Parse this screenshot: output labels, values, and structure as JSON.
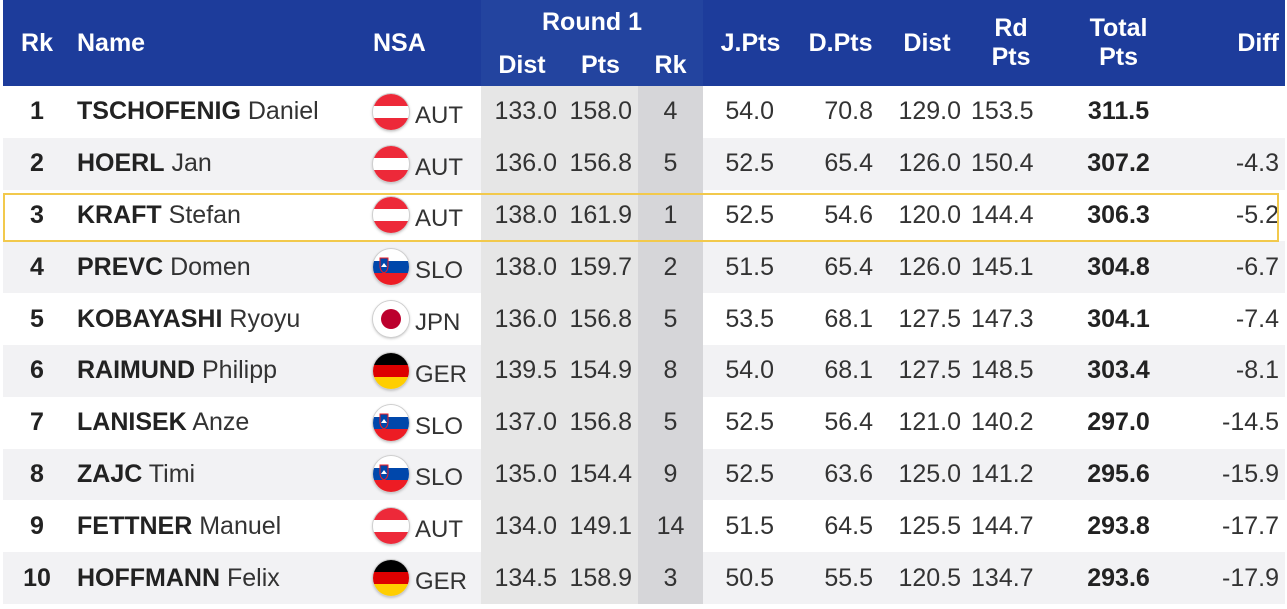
{
  "header": {
    "rk": "Rk",
    "name": "Name",
    "nsa": "NSA",
    "round1": "Round 1",
    "r1_dist": "Dist",
    "r1_pts": "Pts",
    "r1_rk": "Rk",
    "jpts": "J.Pts",
    "dpts": "D.Pts",
    "dist": "Dist",
    "rdpts_line1": "Rd",
    "rdpts_line2": "Pts",
    "total_line1": "Total",
    "total_line2": "Pts",
    "diff": "Diff"
  },
  "colors": {
    "header_bg": "#1d3c9b",
    "highlight_border": "#f2c94c"
  },
  "rows": [
    {
      "rk": "1",
      "last": "TSCHOFENIG",
      "first": "Daniel",
      "flag": "aut-flag-icon",
      "nsa": "AUT",
      "r1_dist": "133.0",
      "r1_pts": "158.0",
      "r1_rk": "4",
      "jpts": "54.0",
      "dpts": "70.8",
      "dist": "129.0",
      "rdpts": "153.5",
      "total": "311.5",
      "diff": ""
    },
    {
      "rk": "2",
      "last": "HOERL",
      "first": "Jan",
      "flag": "aut-flag-icon",
      "nsa": "AUT",
      "r1_dist": "136.0",
      "r1_pts": "156.8",
      "r1_rk": "5",
      "jpts": "52.5",
      "dpts": "65.4",
      "dist": "126.0",
      "rdpts": "150.4",
      "total": "307.2",
      "diff": "-4.3"
    },
    {
      "rk": "3",
      "last": "KRAFT",
      "first": "Stefan",
      "flag": "aut-flag-icon",
      "nsa": "AUT",
      "r1_dist": "138.0",
      "r1_pts": "161.9",
      "r1_rk": "1",
      "jpts": "52.5",
      "dpts": "54.6",
      "dist": "120.0",
      "rdpts": "144.4",
      "total": "306.3",
      "diff": "-5.2"
    },
    {
      "rk": "4",
      "last": "PREVC",
      "first": "Domen",
      "flag": "slo-flag-icon",
      "nsa": "SLO",
      "r1_dist": "138.0",
      "r1_pts": "159.7",
      "r1_rk": "2",
      "jpts": "51.5",
      "dpts": "65.4",
      "dist": "126.0",
      "rdpts": "145.1",
      "total": "304.8",
      "diff": "-6.7"
    },
    {
      "rk": "5",
      "last": "KOBAYASHI",
      "first": "Ryoyu",
      "flag": "jpn-flag-icon",
      "nsa": "JPN",
      "r1_dist": "136.0",
      "r1_pts": "156.8",
      "r1_rk": "5",
      "jpts": "53.5",
      "dpts": "68.1",
      "dist": "127.5",
      "rdpts": "147.3",
      "total": "304.1",
      "diff": "-7.4"
    },
    {
      "rk": "6",
      "last": "RAIMUND",
      "first": "Philipp",
      "flag": "ger-flag-icon",
      "nsa": "GER",
      "r1_dist": "139.5",
      "r1_pts": "154.9",
      "r1_rk": "8",
      "jpts": "54.0",
      "dpts": "68.1",
      "dist": "127.5",
      "rdpts": "148.5",
      "total": "303.4",
      "diff": "-8.1"
    },
    {
      "rk": "7",
      "last": "LANISEK",
      "first": "Anze",
      "flag": "slo-flag-icon",
      "nsa": "SLO",
      "r1_dist": "137.0",
      "r1_pts": "156.8",
      "r1_rk": "5",
      "jpts": "52.5",
      "dpts": "56.4",
      "dist": "121.0",
      "rdpts": "140.2",
      "total": "297.0",
      "diff": "-14.5"
    },
    {
      "rk": "8",
      "last": "ZAJC",
      "first": "Timi",
      "flag": "slo-flag-icon",
      "nsa": "SLO",
      "r1_dist": "135.0",
      "r1_pts": "154.4",
      "r1_rk": "9",
      "jpts": "52.5",
      "dpts": "63.6",
      "dist": "125.0",
      "rdpts": "141.2",
      "total": "295.6",
      "diff": "-15.9"
    },
    {
      "rk": "9",
      "last": "FETTNER",
      "first": "Manuel",
      "flag": "aut-flag-icon",
      "nsa": "AUT",
      "r1_dist": "134.0",
      "r1_pts": "149.1",
      "r1_rk": "14",
      "jpts": "51.5",
      "dpts": "64.5",
      "dist": "125.5",
      "rdpts": "144.7",
      "total": "293.8",
      "diff": "-17.7"
    },
    {
      "rk": "10",
      "last": "HOFFMANN",
      "first": "Felix",
      "flag": "ger-flag-icon",
      "nsa": "GER",
      "r1_dist": "134.5",
      "r1_pts": "158.9",
      "r1_rk": "3",
      "jpts": "50.5",
      "dpts": "55.5",
      "dist": "120.5",
      "rdpts": "134.7",
      "total": "293.6",
      "diff": "-17.9"
    }
  ]
}
